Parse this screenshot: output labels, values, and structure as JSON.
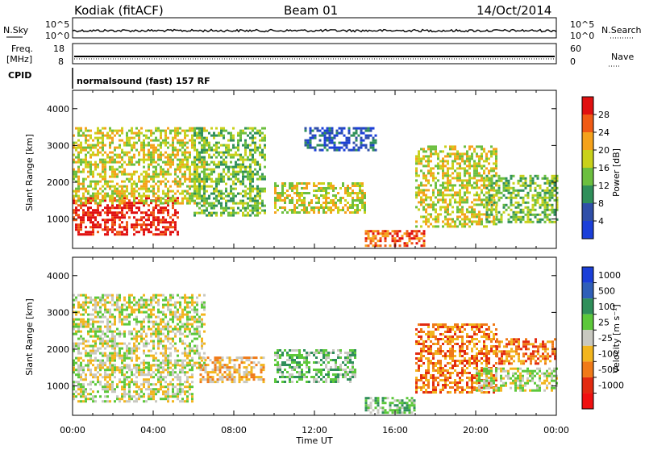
{
  "header": {
    "station": "Kodiak (fitACF)",
    "beam": "Beam 01",
    "date": "14/Oct/2014"
  },
  "nsky_panel": {
    "left_label": "N.Sky",
    "left_ticks": [
      "10^5",
      "10^0"
    ],
    "right_label": "N.Search",
    "right_ticks": [
      "10^5",
      "10^0"
    ]
  },
  "freq_panel": {
    "left_label_top": "Freq.",
    "left_label_bottom": "[MHz]",
    "left_ticks": [
      "18",
      "8"
    ],
    "right_label": "Nave",
    "right_ticks": [
      "60",
      "0"
    ]
  },
  "cpid_panel": {
    "label": "CPID",
    "mode": "normalsound (fast) 157 RF"
  },
  "x_axis": {
    "title": "Time UT",
    "ticks": [
      "00:00",
      "04:00",
      "08:00",
      "12:00",
      "16:00",
      "20:00",
      "00:00"
    ]
  },
  "power_colorbar": {
    "title": "Power [dB]",
    "ticks": [
      "4",
      "8",
      "12",
      "16",
      "20",
      "24",
      "28"
    ],
    "colors": [
      "#1b3fd8",
      "#2f4fa8",
      "#2f8f5a",
      "#6cbf3f",
      "#c9d11b",
      "#f5a21b",
      "#f05a14",
      "#e01010"
    ]
  },
  "velocity_colorbar": {
    "title": "Velocity [m s⁻¹]",
    "ticks": [
      "1000",
      "500",
      "100",
      "25",
      "-25",
      "-100",
      "-500",
      "-1000"
    ],
    "colors": [
      "#1b3fd8",
      "#2f5fb8",
      "#2f8f5a",
      "#5cc83a",
      "#c8c8c0",
      "#f2b51e",
      "#f07a18",
      "#e22a10",
      "#f01010"
    ]
  },
  "chart_data": [
    {
      "type": "heatmap",
      "name": "power",
      "ylabel": "Slant Range [km]",
      "yticks": [
        1000,
        2000,
        3000,
        4000
      ],
      "ylim": [
        200,
        4500
      ],
      "xlim_hours": [
        0,
        24
      ],
      "regions": [
        {
          "t0": 0.0,
          "t1": 5.2,
          "r0": 600,
          "r1": 1600,
          "level": 7
        },
        {
          "t0": 0.0,
          "t1": 6.5,
          "r0": 1400,
          "r1": 3500,
          "level": 4
        },
        {
          "t0": 6.0,
          "t1": 9.5,
          "r0": 1100,
          "r1": 3500,
          "level": 3
        },
        {
          "t0": 10.0,
          "t1": 14.5,
          "r0": 1200,
          "r1": 2000,
          "level": 4
        },
        {
          "t0": 11.5,
          "t1": 15.0,
          "r0": 2900,
          "r1": 3500,
          "level": 1
        },
        {
          "t0": 14.5,
          "t1": 17.5,
          "r0": 250,
          "r1": 700,
          "level": 6
        },
        {
          "t0": 17.0,
          "t1": 21.0,
          "r0": 800,
          "r1": 3000,
          "level": 4
        },
        {
          "t0": 20.5,
          "t1": 24.0,
          "r0": 900,
          "r1": 2200,
          "level": 3
        }
      ]
    },
    {
      "type": "heatmap",
      "name": "velocity",
      "ylabel": "Slant Range [km]",
      "yticks": [
        1000,
        2000,
        3000,
        4000
      ],
      "ylim": [
        200,
        4500
      ],
      "xlim_hours": [
        0,
        24
      ],
      "regions": [
        {
          "t0": 0.0,
          "t1": 6.0,
          "r0": 600,
          "r1": 1600,
          "level": 4
        },
        {
          "t0": 0.0,
          "t1": 6.5,
          "r0": 1500,
          "r1": 3500,
          "level": 4
        },
        {
          "t0": 6.3,
          "t1": 9.5,
          "r0": 1100,
          "r1": 1800,
          "level": 5
        },
        {
          "t0": 10.0,
          "t1": 14.0,
          "r0": 1100,
          "r1": 2000,
          "level": 3
        },
        {
          "t0": 14.5,
          "t1": 17.0,
          "r0": 250,
          "r1": 700,
          "level": 3
        },
        {
          "t0": 17.0,
          "t1": 21.0,
          "r0": 800,
          "r1": 2700,
          "level": 6
        },
        {
          "t0": 20.0,
          "t1": 24.0,
          "r0": 900,
          "r1": 1500,
          "level": 4
        },
        {
          "t0": 21.0,
          "t1": 24.0,
          "r0": 1600,
          "r1": 2300,
          "level": 6
        }
      ]
    }
  ]
}
